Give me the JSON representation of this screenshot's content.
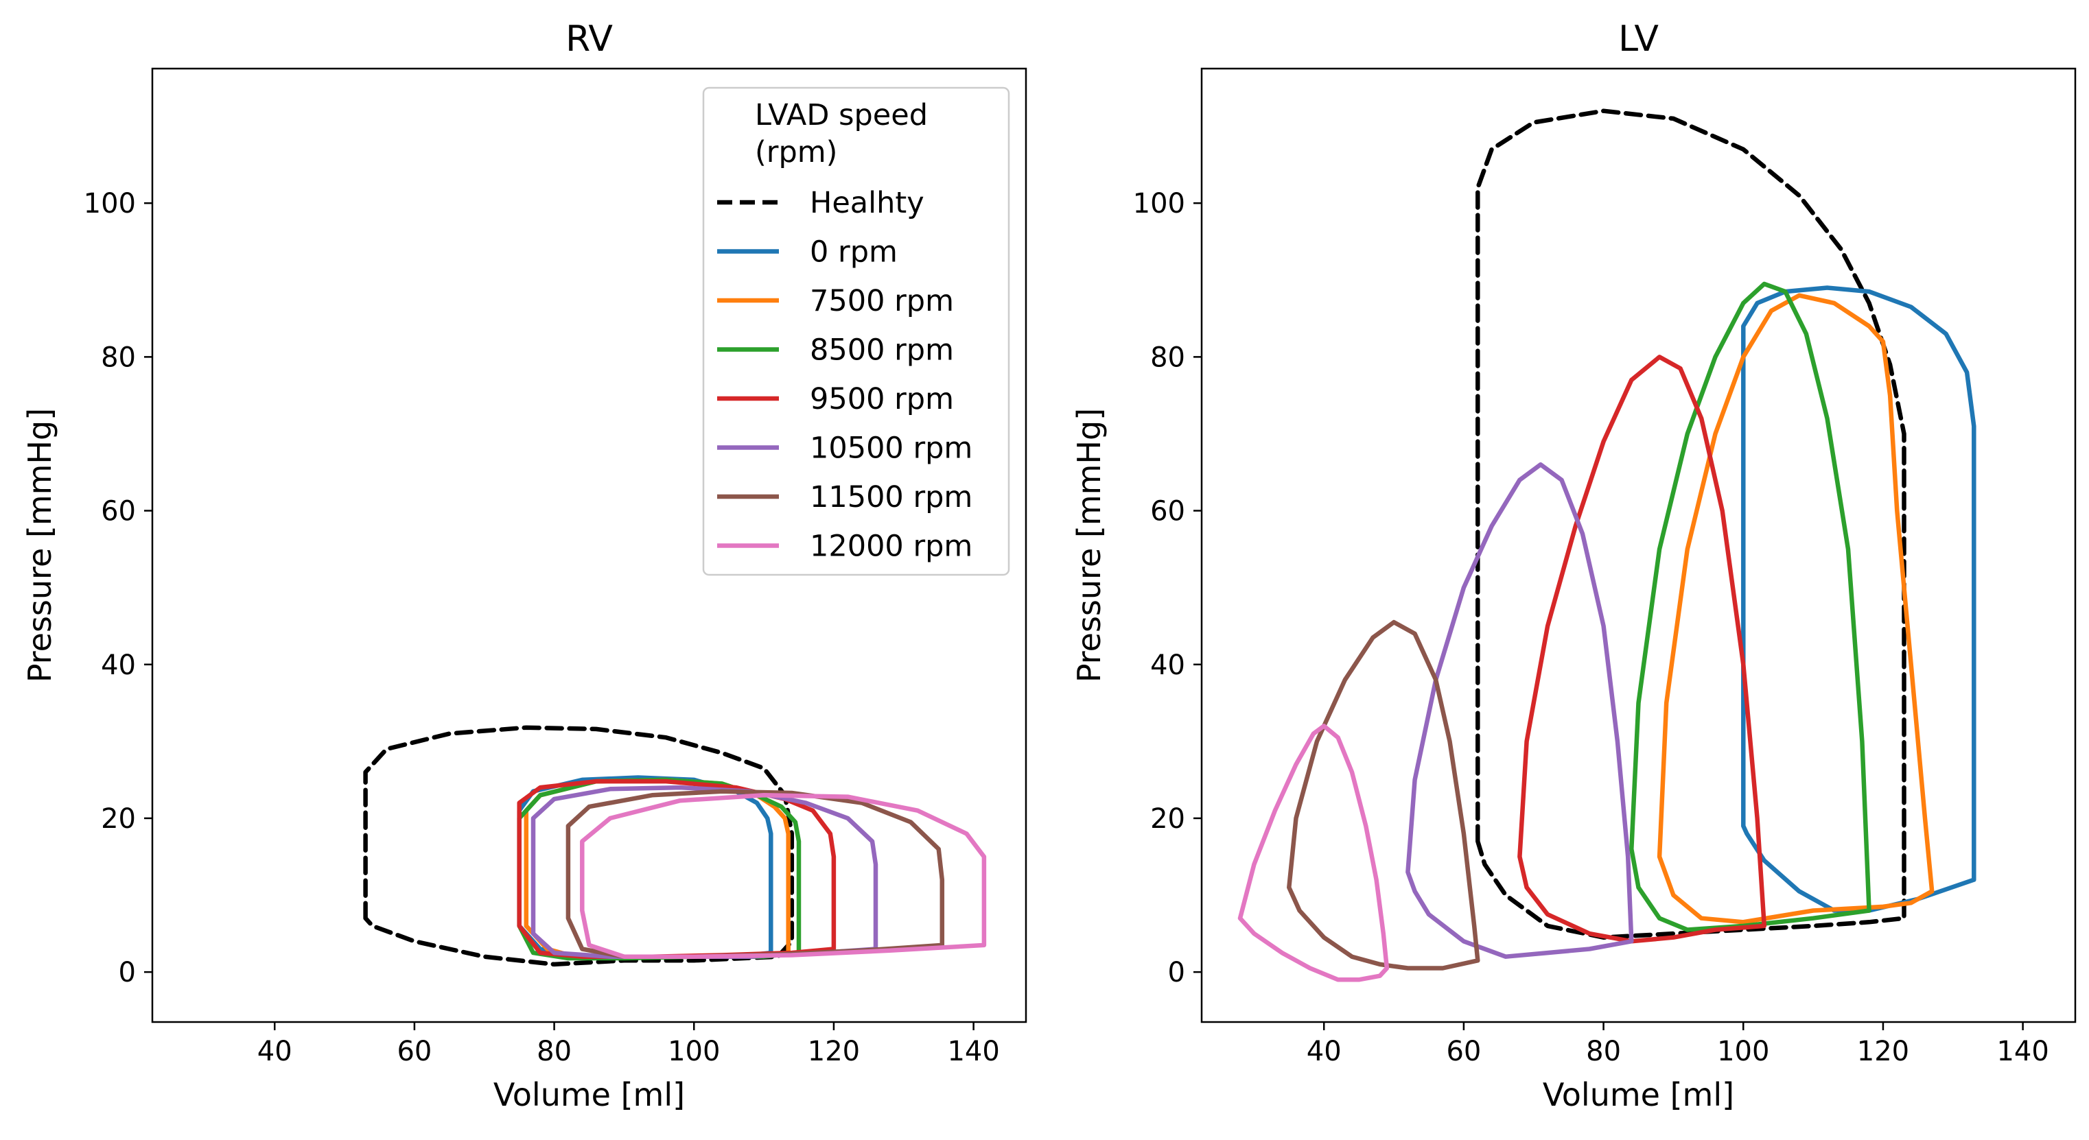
{
  "chart_data": [
    {
      "type": "line",
      "title": "RV",
      "xlabel": "Volume [ml]",
      "ylabel": "Pressure [mmHg]",
      "xlim": [
        22.5,
        147.5
      ],
      "ylim": [
        -6.5,
        117.5
      ],
      "xticks": [
        "40",
        "60",
        "80",
        "100",
        "120",
        "140"
      ],
      "yticks": [
        "0",
        "20",
        "40",
        "60",
        "80",
        "100"
      ],
      "legend": {
        "placement": "top-right",
        "title": "LVAD speed\n(rpm)"
      },
      "series": [
        {
          "name": "Healhty",
          "color": "#000000",
          "dashed": true,
          "x": [
            53,
            53,
            56,
            65,
            76,
            86,
            96,
            104,
            110,
            113,
            114,
            114,
            112,
            100,
            90,
            80,
            70,
            60,
            54,
            53
          ],
          "y": [
            7,
            26,
            29,
            31,
            31.8,
            31.6,
            30.5,
            28.5,
            26.5,
            23,
            18,
            4,
            2,
            1.5,
            1.5,
            1,
            2,
            4,
            6,
            7
          ]
        },
        {
          "name": "0 rpm",
          "color": "#1f77b4",
          "x": [
            75,
            75,
            77,
            84,
            92,
            100,
            106,
            109,
            110.5,
            111,
            111,
            106,
            98,
            90,
            82,
            78,
            75
          ],
          "y": [
            6,
            21,
            23.5,
            25,
            25.3,
            25,
            23.5,
            22,
            20,
            18,
            2.5,
            2,
            2,
            2,
            2,
            3,
            6
          ]
        },
        {
          "name": "7500 rpm",
          "color": "#ff7f0e",
          "x": [
            76,
            76,
            78,
            86,
            96,
            104,
            109,
            111.5,
            113,
            113.5,
            113.5,
            106,
            98,
            90,
            83,
            79,
            76
          ],
          "y": [
            6,
            21,
            23,
            24.8,
            25,
            24.5,
            23,
            21.5,
            20,
            18,
            2.5,
            2,
            2,
            2,
            2,
            3,
            6
          ]
        },
        {
          "name": "8500 rpm",
          "color": "#2ca02c",
          "x": [
            75,
            75,
            78,
            86,
            96,
            104,
            109,
            112.5,
            114.5,
            115,
            115,
            110,
            100,
            90,
            82,
            77,
            75
          ],
          "y": [
            6,
            20,
            23,
            24.8,
            25,
            24.5,
            23,
            21.5,
            19.5,
            17,
            2.5,
            2,
            2,
            1.8,
            1.8,
            2.5,
            6
          ]
        },
        {
          "name": "9500 rpm",
          "color": "#d62728",
          "x": [
            75,
            75,
            78,
            86,
            96,
            106,
            113,
            117,
            119.5,
            120,
            120,
            114,
            104,
            94,
            84,
            78,
            75
          ],
          "y": [
            6,
            22,
            24,
            24.8,
            24.8,
            24,
            22.5,
            21,
            18,
            15,
            3,
            2.5,
            2.2,
            2,
            2,
            2.5,
            6
          ]
        },
        {
          "name": "10500 rpm",
          "color": "#9467bd",
          "x": [
            77,
            77,
            80,
            88,
            98,
            108,
            116,
            122,
            125.5,
            126,
            126,
            118,
            108,
            98,
            88,
            80,
            77
          ],
          "y": [
            5,
            20,
            22.5,
            23.8,
            24,
            23.5,
            22,
            20,
            17,
            14,
            3,
            2.5,
            2,
            2,
            2,
            2.5,
            5
          ]
        },
        {
          "name": "11500 rpm",
          "color": "#8c564b",
          "x": [
            82,
            82,
            85,
            94,
            104,
            114,
            124,
            131,
            135,
            135.5,
            135.5,
            124,
            112,
            100,
            90,
            84,
            82
          ],
          "y": [
            7,
            19,
            21.5,
            23,
            23.5,
            23.3,
            22,
            19.5,
            16,
            12,
            3.5,
            2.8,
            2.3,
            2,
            2,
            3,
            7
          ]
        },
        {
          "name": "12000 rpm",
          "color": "#e377c2",
          "x": [
            84,
            84,
            88,
            98,
            110,
            122,
            132,
            139,
            141.5,
            141.5,
            141.5,
            128,
            114,
            100,
            90,
            85,
            84
          ],
          "y": [
            8,
            17,
            20,
            22.3,
            23,
            22.8,
            21,
            18,
            15,
            11,
            3.5,
            2.8,
            2.2,
            2,
            2,
            3.5,
            8
          ]
        }
      ]
    },
    {
      "type": "line",
      "title": "LV",
      "xlabel": "Volume [ml]",
      "ylabel": "Pressure [mmHg]",
      "xlim": [
        22.5,
        147.5
      ],
      "ylim": [
        -6.5,
        117.5
      ],
      "xticks": [
        "40",
        "60",
        "80",
        "100",
        "120",
        "140"
      ],
      "yticks": [
        "0",
        "20",
        "40",
        "60",
        "80",
        "100"
      ],
      "series": [
        {
          "name": "Healhty",
          "color": "#000000",
          "dashed": true,
          "x": [
            62,
            62,
            64,
            70,
            80,
            90,
            100,
            108,
            114,
            118,
            121,
            123,
            123,
            123,
            118,
            110,
            100,
            90,
            80,
            72,
            66,
            63,
            62
          ],
          "y": [
            17,
            102,
            107,
            110.5,
            112,
            111,
            107,
            101,
            94,
            87,
            79,
            70,
            50,
            7,
            6.5,
            6,
            5.5,
            5,
            4.5,
            6,
            10,
            14,
            17
          ]
        },
        {
          "name": "0 rpm",
          "color": "#1f77b4",
          "x": [
            100,
            100,
            102,
            106,
            112,
            118,
            124,
            129,
            132,
            133,
            133,
            125,
            118,
            113,
            108,
            103,
            100.5,
            100
          ],
          "y": [
            19,
            84,
            87,
            88.5,
            89,
            88.5,
            86.5,
            83,
            78,
            71,
            12,
            9.5,
            8,
            8,
            10.5,
            14.5,
            18,
            19
          ]
        },
        {
          "name": "7500 rpm",
          "color": "#ff7f0e",
          "x": [
            88,
            89,
            92,
            96,
            100,
            104,
            108,
            113,
            118,
            120,
            121,
            122,
            124,
            126,
            127,
            124,
            120,
            110,
            100,
            94,
            90,
            88
          ],
          "y": [
            15,
            35,
            55,
            70,
            80,
            86,
            88,
            87,
            84,
            82,
            75,
            60,
            40,
            20,
            10.5,
            9,
            8.5,
            8,
            6.5,
            7,
            10,
            15
          ]
        },
        {
          "name": "8500 rpm",
          "color": "#2ca02c",
          "x": [
            84,
            85,
            88,
            92,
            96,
            100,
            103,
            106,
            109,
            112,
            115,
            117,
            118,
            110,
            100,
            92,
            88,
            85,
            84
          ],
          "y": [
            16,
            35,
            55,
            70,
            80,
            87,
            89.5,
            88.5,
            83,
            72,
            55,
            30,
            8,
            7,
            6,
            5.5,
            7,
            11,
            16
          ]
        },
        {
          "name": "9500 rpm",
          "color": "#d62728",
          "x": [
            68,
            69,
            72,
            76,
            80,
            84,
            88,
            91,
            94,
            97,
            100,
            102,
            103,
            96,
            90,
            84,
            78,
            72,
            69,
            68
          ],
          "y": [
            15,
            30,
            45,
            58,
            69,
            77,
            80,
            78.5,
            72,
            60,
            40,
            20,
            6,
            5.5,
            4.5,
            4,
            5,
            7.5,
            11,
            15
          ]
        },
        {
          "name": "10500 rpm",
          "color": "#9467bd",
          "x": [
            52,
            53,
            56,
            60,
            64,
            68,
            71,
            74,
            77,
            80,
            82,
            83.5,
            84,
            78,
            72,
            66,
            60,
            55,
            53,
            52
          ],
          "y": [
            13,
            25,
            38,
            50,
            58,
            64,
            66,
            64,
            57,
            45,
            30,
            15,
            4,
            3,
            2.5,
            2,
            4,
            7.5,
            10.5,
            13
          ]
        },
        {
          "name": "11500 rpm",
          "color": "#8c564b",
          "x": [
            35,
            36,
            39,
            43,
            47,
            50,
            53,
            56,
            58,
            60,
            61.5,
            62,
            57,
            52,
            48,
            44,
            40,
            36.5,
            35.5,
            35
          ],
          "y": [
            11,
            20,
            30,
            38,
            43.5,
            45.5,
            44,
            38,
            30,
            18,
            6,
            1.5,
            0.5,
            0.5,
            1,
            2,
            4.5,
            8,
            10,
            11
          ]
        },
        {
          "name": "12000 rpm",
          "color": "#e377c2",
          "x": [
            28,
            30,
            33,
            36,
            38.5,
            40,
            42,
            44,
            46,
            47.5,
            48.5,
            49,
            48,
            45,
            42,
            38,
            34,
            30,
            28.5,
            28
          ],
          "y": [
            7,
            14,
            21,
            27,
            31,
            32,
            30.5,
            26,
            19,
            12,
            5,
            0.5,
            -0.5,
            -1,
            -1,
            0.5,
            2.5,
            5,
            6.5,
            7
          ]
        }
      ]
    }
  ]
}
